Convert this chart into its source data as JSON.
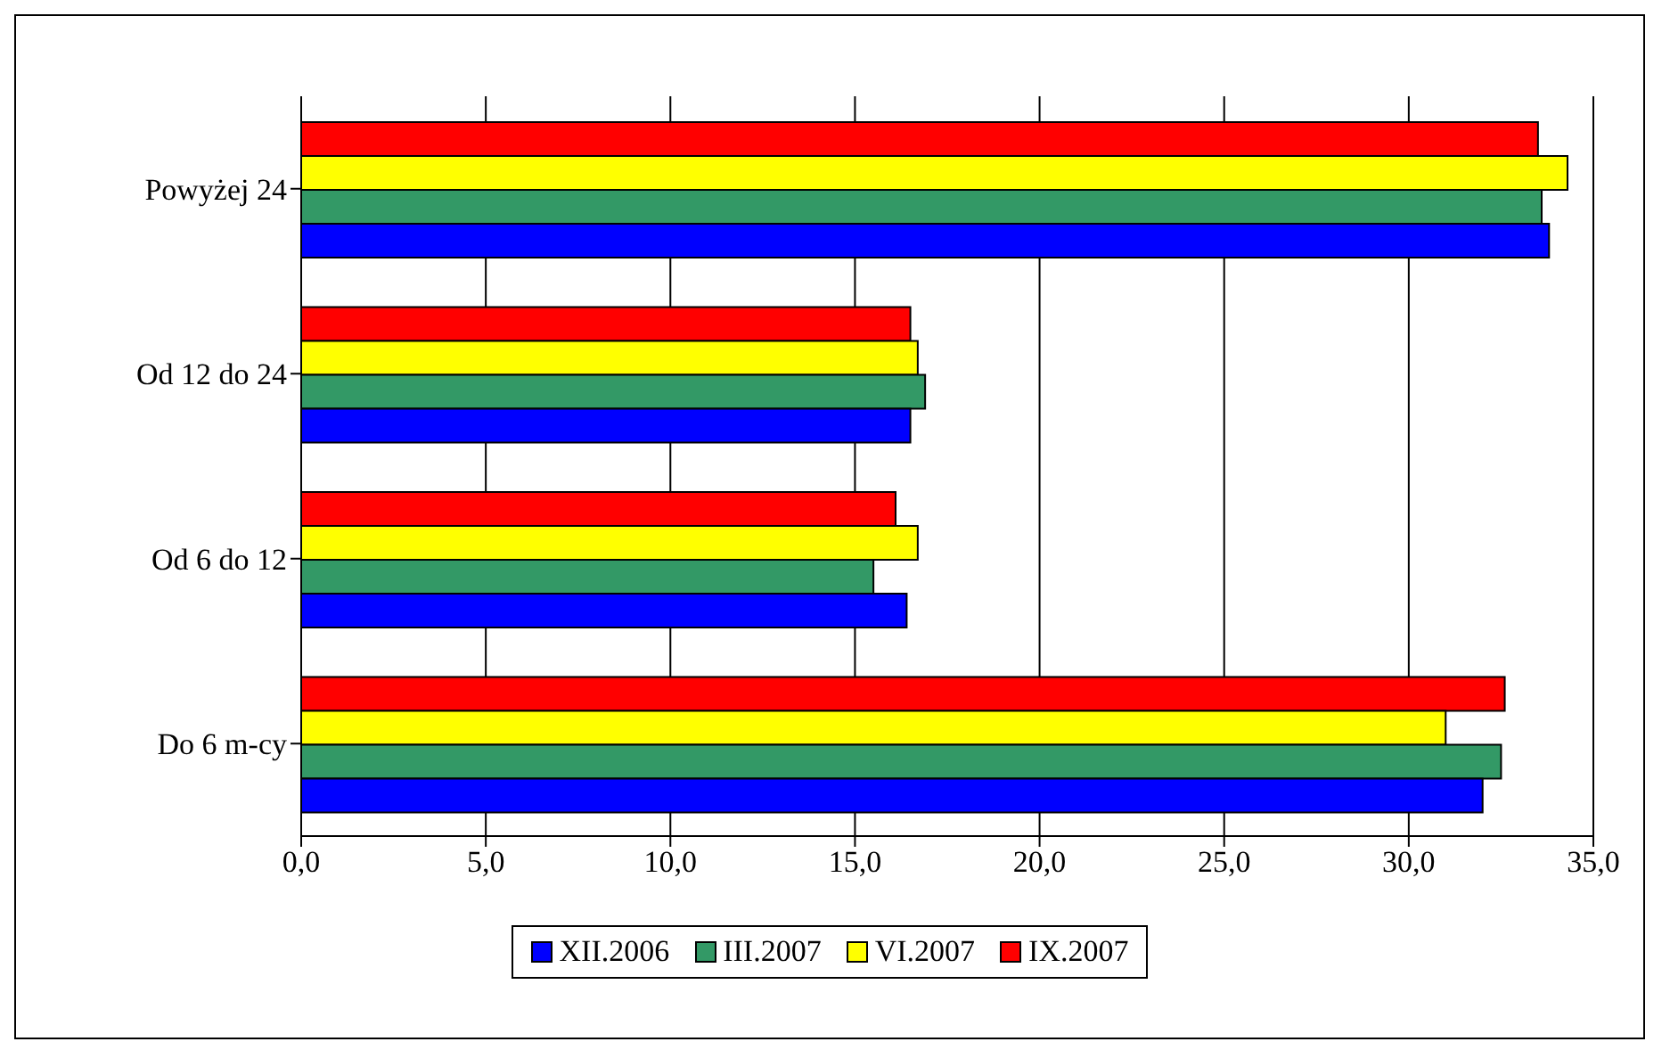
{
  "chart_data": {
    "type": "bar",
    "orientation": "horizontal",
    "categories": [
      "Powyżej 24",
      "Od 12 do 24",
      "Od 6 do 12",
      "Do 6 m-cy"
    ],
    "series": [
      {
        "name": "XII.2006",
        "color": "#0000ff",
        "values": [
          33.8,
          16.5,
          16.4,
          32.0
        ]
      },
      {
        "name": "III.2007",
        "color": "#339966",
        "values": [
          33.6,
          16.9,
          15.5,
          32.5
        ]
      },
      {
        "name": "VI.2007",
        "color": "#ffff00",
        "values": [
          34.3,
          16.7,
          16.7,
          31.0
        ]
      },
      {
        "name": "IX.2007",
        "color": "#ff0000",
        "values": [
          33.5,
          16.5,
          16.1,
          32.6
        ]
      }
    ],
    "xlim": [
      0,
      35
    ],
    "xticks": [
      {
        "value": 0,
        "label": "0,0"
      },
      {
        "value": 5,
        "label": "5,0"
      },
      {
        "value": 10,
        "label": "10,0"
      },
      {
        "value": 15,
        "label": "15,0"
      },
      {
        "value": 20,
        "label": "20,0"
      },
      {
        "value": 25,
        "label": "25,0"
      },
      {
        "value": 30,
        "label": "30,0"
      },
      {
        "value": 35,
        "label": "35,0"
      }
    ],
    "grid": "x",
    "legend": "bottom"
  }
}
